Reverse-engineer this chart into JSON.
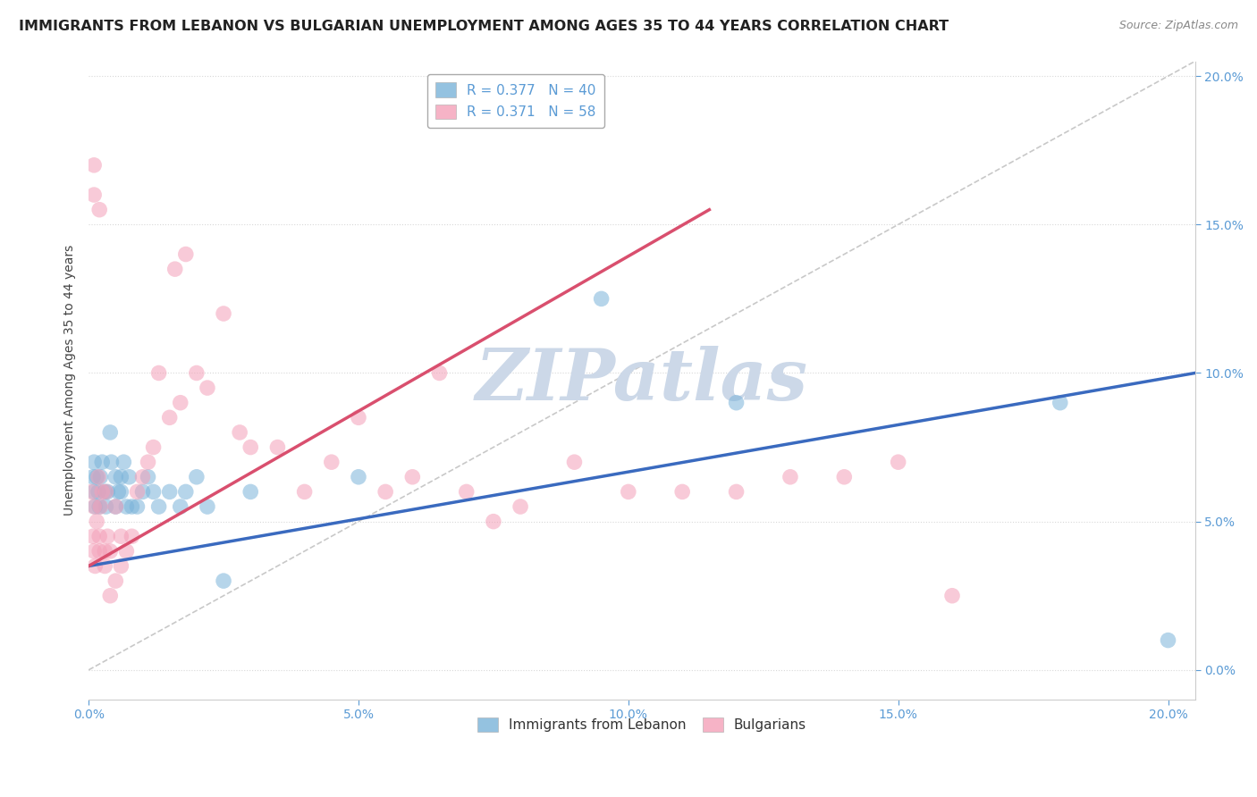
{
  "title": "IMMIGRANTS FROM LEBANON VS BULGARIAN UNEMPLOYMENT AMONG AGES 35 TO 44 YEARS CORRELATION CHART",
  "source": "Source: ZipAtlas.com",
  "ylabel_label": "Unemployment Among Ages 35 to 44 years",
  "series1_label": "Immigrants from Lebanon",
  "series2_label": "Bulgarians",
  "legend_r1": "R = 0.377   N = 40",
  "legend_r2": "R = 0.371   N = 58",
  "series1_color": "#7ab3d9",
  "series2_color": "#f4a0b8",
  "trendline1_color": "#3a6abf",
  "trendline2_color": "#d94f6e",
  "watermark": "ZIPatlas",
  "watermark_color": "#ccd8e8",
  "xlim": [
    0.0,
    0.205
  ],
  "ylim": [
    -0.01,
    0.205
  ],
  "ytick_lim": [
    0.0,
    0.2
  ],
  "blue_scatter_x": [
    0.0008,
    0.001,
    0.001,
    0.0012,
    0.0015,
    0.0018,
    0.002,
    0.0022,
    0.0025,
    0.003,
    0.0032,
    0.0035,
    0.004,
    0.0042,
    0.005,
    0.005,
    0.0055,
    0.006,
    0.006,
    0.0065,
    0.007,
    0.0075,
    0.008,
    0.009,
    0.01,
    0.011,
    0.012,
    0.013,
    0.015,
    0.017,
    0.018,
    0.02,
    0.022,
    0.025,
    0.03,
    0.05,
    0.095,
    0.12,
    0.18,
    0.2
  ],
  "blue_scatter_y": [
    0.065,
    0.06,
    0.07,
    0.055,
    0.065,
    0.06,
    0.055,
    0.065,
    0.07,
    0.06,
    0.055,
    0.06,
    0.08,
    0.07,
    0.065,
    0.055,
    0.06,
    0.06,
    0.065,
    0.07,
    0.055,
    0.065,
    0.055,
    0.055,
    0.06,
    0.065,
    0.06,
    0.055,
    0.06,
    0.055,
    0.06,
    0.065,
    0.055,
    0.03,
    0.06,
    0.065,
    0.125,
    0.09,
    0.09,
    0.01
  ],
  "pink_scatter_x": [
    0.0005,
    0.0008,
    0.001,
    0.001,
    0.0012,
    0.0015,
    0.0018,
    0.002,
    0.002,
    0.0022,
    0.0025,
    0.003,
    0.003,
    0.0032,
    0.0035,
    0.004,
    0.004,
    0.005,
    0.005,
    0.006,
    0.006,
    0.007,
    0.008,
    0.009,
    0.01,
    0.011,
    0.012,
    0.013,
    0.015,
    0.016,
    0.017,
    0.018,
    0.02,
    0.022,
    0.025,
    0.028,
    0.03,
    0.035,
    0.04,
    0.045,
    0.05,
    0.055,
    0.06,
    0.065,
    0.07,
    0.075,
    0.08,
    0.09,
    0.1,
    0.11,
    0.12,
    0.13,
    0.14,
    0.15,
    0.16,
    0.001,
    0.001,
    0.002
  ],
  "pink_scatter_y": [
    0.06,
    0.045,
    0.04,
    0.055,
    0.035,
    0.05,
    0.065,
    0.045,
    0.04,
    0.055,
    0.06,
    0.035,
    0.04,
    0.06,
    0.045,
    0.04,
    0.025,
    0.055,
    0.03,
    0.045,
    0.035,
    0.04,
    0.045,
    0.06,
    0.065,
    0.07,
    0.075,
    0.1,
    0.085,
    0.135,
    0.09,
    0.14,
    0.1,
    0.095,
    0.12,
    0.08,
    0.075,
    0.075,
    0.06,
    0.07,
    0.085,
    0.06,
    0.065,
    0.1,
    0.06,
    0.05,
    0.055,
    0.07,
    0.06,
    0.06,
    0.06,
    0.065,
    0.065,
    0.07,
    0.025,
    0.17,
    0.16,
    0.155
  ],
  "trendline1_x": [
    0.0,
    0.205
  ],
  "trendline1_y": [
    0.035,
    0.1
  ],
  "trendline2_x": [
    0.0,
    0.115
  ],
  "trendline2_y": [
    0.035,
    0.155
  ],
  "refline_x": [
    0.0,
    0.205
  ],
  "refline_y": [
    0.0,
    0.205
  ],
  "background_color": "#ffffff",
  "grid_color": "#d8d8d8",
  "axis_tick_color": "#5b9bd5",
  "title_fontsize": 11.5,
  "label_fontsize": 10,
  "tick_fontsize": 10
}
